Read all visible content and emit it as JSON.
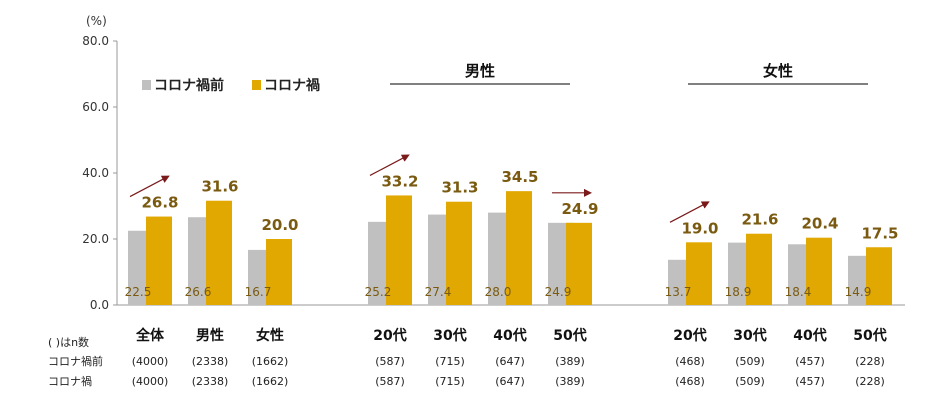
{
  "chart_data": {
    "type": "bar",
    "unit_label": "(%)",
    "ylim": [
      0,
      80
    ],
    "yticks": [
      "0.0",
      "20.0",
      "40.0",
      "60.0",
      "80.0"
    ],
    "legend": {
      "position": "top-left",
      "entries": [
        "コロナ禍前",
        "コロナ禍"
      ]
    },
    "group_labels": [
      "男性",
      "女性"
    ],
    "n_header": "( )はn数",
    "row_labels": [
      "コロナ禍前",
      "コロナ禍"
    ],
    "colors": {
      "before": "#c0c0c0",
      "after": "#e0a800",
      "arrow": "#7a1a1a",
      "value_text": "#7a5a10"
    },
    "categories": [
      {
        "label": "全体",
        "before": 22.5,
        "after": 26.8,
        "before_text": "22.5",
        "after_text": "26.8",
        "n_before": "(4000)",
        "n_after": "(4000)"
      },
      {
        "label": "男性",
        "before": 26.6,
        "after": 31.6,
        "before_text": "26.6",
        "after_text": "31.6",
        "n_before": "(2338)",
        "n_after": "(2338)"
      },
      {
        "label": "女性",
        "before": 16.7,
        "after": 20.0,
        "before_text": "16.7",
        "after_text": "20.0",
        "n_before": "(1662)",
        "n_after": "(1662)"
      },
      {
        "label": "20代",
        "before": 25.2,
        "after": 33.2,
        "before_text": "25.2",
        "after_text": "33.2",
        "n_before": "(587)",
        "n_after": "(587)"
      },
      {
        "label": "30代",
        "before": 27.4,
        "after": 31.3,
        "before_text": "27.4",
        "after_text": "31.3",
        "n_before": "(715)",
        "n_after": "(715)"
      },
      {
        "label": "40代",
        "before": 28.0,
        "after": 34.5,
        "before_text": "28.0",
        "after_text": "34.5",
        "n_before": "(647)",
        "n_after": "(647)"
      },
      {
        "label": "50代",
        "before": 24.9,
        "after": 24.9,
        "before_text": "24.9",
        "after_text": "24.9",
        "n_before": "(389)",
        "n_after": "(389)"
      },
      {
        "label": "20代",
        "before": 13.7,
        "after": 19.0,
        "before_text": "13.7",
        "after_text": "19.0",
        "n_before": "(468)",
        "n_after": "(468)"
      },
      {
        "label": "30代",
        "before": 18.9,
        "after": 21.6,
        "before_text": "18.9",
        "after_text": "21.6",
        "n_before": "(509)",
        "n_after": "(509)"
      },
      {
        "label": "40代",
        "before": 18.4,
        "after": 20.4,
        "before_text": "18.4",
        "after_text": "20.4",
        "n_before": "(457)",
        "n_after": "(457)"
      },
      {
        "label": "50代",
        "before": 14.9,
        "after": 17.5,
        "before_text": "14.9",
        "after_text": "17.5",
        "n_before": "(228)",
        "n_after": "(228)"
      }
    ],
    "arrows": [
      {
        "category_index": 0,
        "direction": "up"
      },
      {
        "category_index": 3,
        "direction": "up"
      },
      {
        "category_index": 6,
        "direction": "flat"
      },
      {
        "category_index": 7,
        "direction": "up"
      }
    ]
  }
}
